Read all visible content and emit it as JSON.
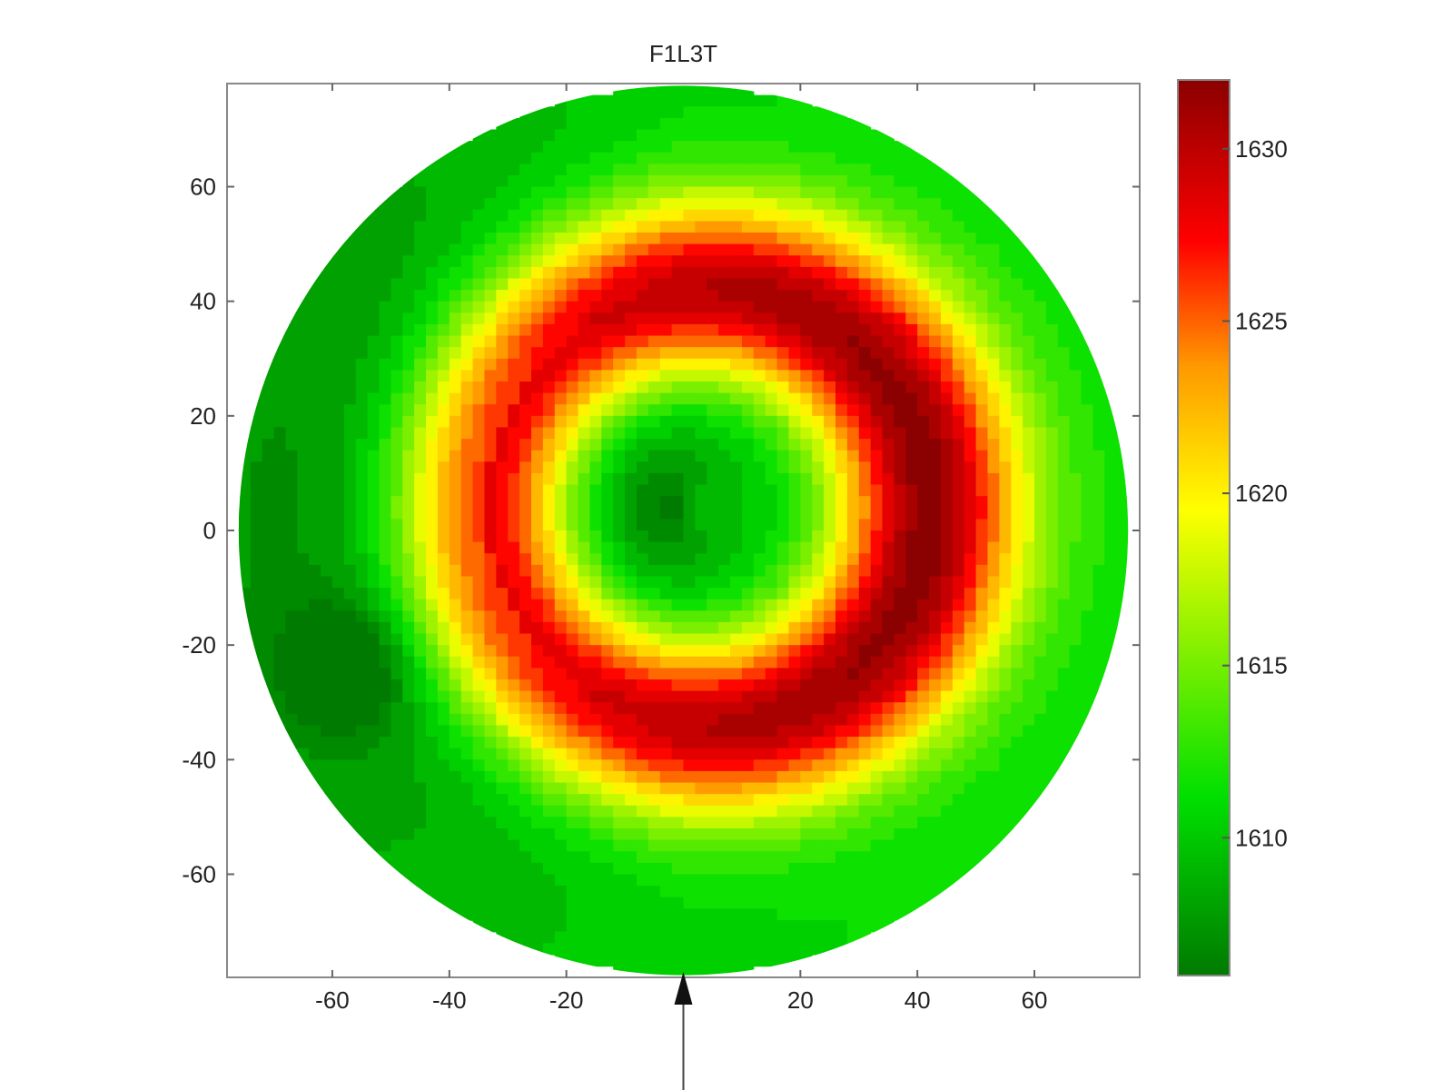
{
  "chart_data": {
    "type": "heatmap",
    "title": "F1L3T",
    "xlabel": "",
    "ylabel": "",
    "xlim": [
      -78,
      78
    ],
    "ylim": [
      -78,
      78
    ],
    "x_ticks": [
      -60,
      -40,
      -20,
      20,
      40,
      60
    ],
    "y_ticks": [
      60,
      40,
      20,
      0,
      -20,
      -40,
      -60
    ],
    "domain_shape": "circle",
    "domain_radius": 76,
    "grid": false,
    "colorbar": {
      "position": "right",
      "range": [
        1606,
        1632
      ],
      "ticks": [
        1630,
        1625,
        1620,
        1615,
        1610
      ],
      "colors": [
        "#007a00",
        "#00e000",
        "#ffff00",
        "#ff9900",
        "#ff0000",
        "#8b0000"
      ]
    },
    "field": {
      "description_levels": "contour field over circular aperture",
      "center": [
        0,
        4
      ],
      "center_value": 1607,
      "ring_peak_value": 1630,
      "ring_radius": 38,
      "outer_value": 1613
    },
    "marker": {
      "type": "arrow-up",
      "x": 0
    }
  }
}
